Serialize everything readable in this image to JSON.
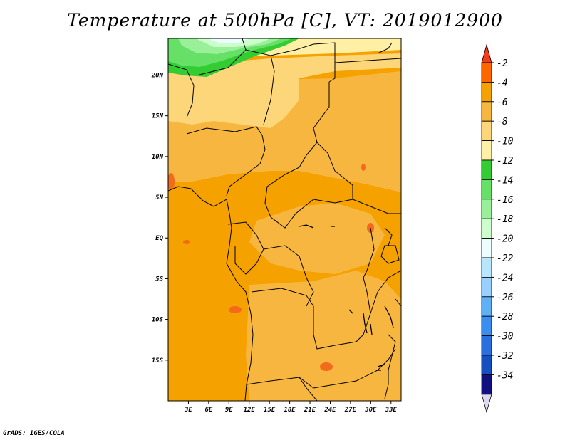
{
  "title": "Temperature at 500hPa [C], VT: 2019012900",
  "credit": "GrADS: IGES/COLA",
  "map": {
    "lon_range": [
      0,
      34.5
    ],
    "lat_range": [
      -20,
      24.5
    ],
    "lat_ticks": [
      {
        "value": 20,
        "label": "20N"
      },
      {
        "value": 15,
        "label": "15N"
      },
      {
        "value": 10,
        "label": "10N"
      },
      {
        "value": 5,
        "label": "5N"
      },
      {
        "value": 0,
        "label": "EQ"
      },
      {
        "value": -5,
        "label": "5S"
      },
      {
        "value": -10,
        "label": "10S"
      },
      {
        "value": -15,
        "label": "15S"
      }
    ],
    "lon_ticks": [
      {
        "value": 3,
        "label": "3E"
      },
      {
        "value": 6,
        "label": "6E"
      },
      {
        "value": 9,
        "label": "9E"
      },
      {
        "value": 12,
        "label": "12E"
      },
      {
        "value": 15,
        "label": "15E"
      },
      {
        "value": 18,
        "label": "18E"
      },
      {
        "value": 21,
        "label": "21E"
      },
      {
        "value": 24,
        "label": "24E"
      },
      {
        "value": 27,
        "label": "27E"
      },
      {
        "value": 30,
        "label": "30E"
      },
      {
        "value": 33,
        "label": "33E"
      }
    ]
  },
  "colorbar": {
    "levels": [
      {
        "label": "-2",
        "color": "#ff6600"
      },
      {
        "label": "-4",
        "color": "#f5a100"
      },
      {
        "label": "-6",
        "color": "#f7b640"
      },
      {
        "label": "-8",
        "color": "#fcd679"
      },
      {
        "label": "-10",
        "color": "#fff0a6"
      },
      {
        "label": "-12",
        "color": "#33cc33"
      },
      {
        "label": "-14",
        "color": "#66e066"
      },
      {
        "label": "-16",
        "color": "#99f099"
      },
      {
        "label": "-18",
        "color": "#ccffcc"
      },
      {
        "label": "-20",
        "color": "#ecfcff"
      },
      {
        "label": "-22",
        "color": "#b8e6ff"
      },
      {
        "label": "-24",
        "color": "#9ad0ff"
      },
      {
        "label": "-26",
        "color": "#5fb0f5"
      },
      {
        "label": "-28",
        "color": "#3a8ef0"
      },
      {
        "label": "-30",
        "color": "#2a6ee0"
      },
      {
        "label": "-32",
        "color": "#1650c0"
      },
      {
        "label": "-34",
        "color": "#101080"
      }
    ],
    "top_color": "#f23d1a",
    "bottom_color": "#ddd8f0",
    "base_map_color": "#f5a100"
  }
}
